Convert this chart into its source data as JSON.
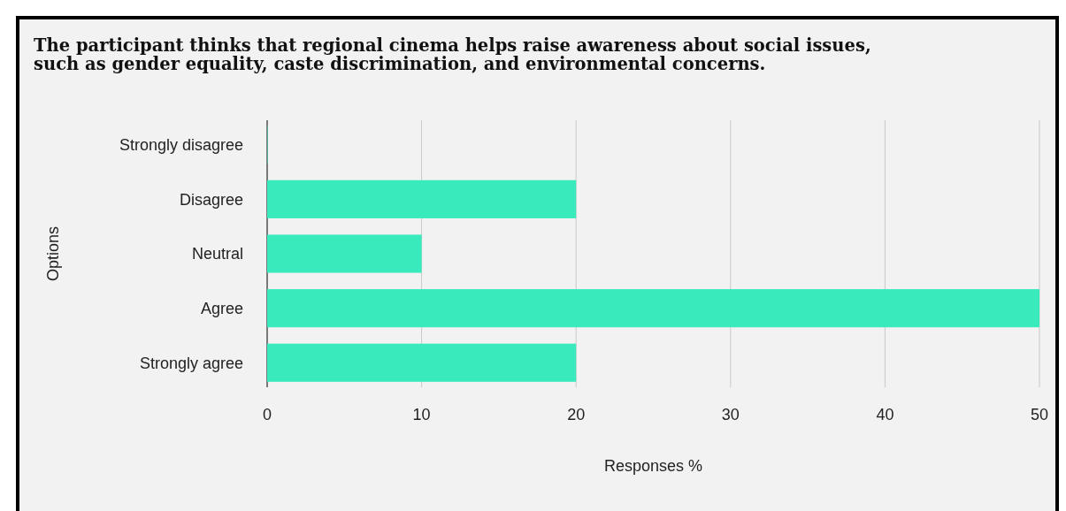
{
  "chart_data": {
    "type": "bar",
    "orientation": "horizontal",
    "title": "The participant thinks that regional cinema helps raise awareness about social issues, such as gender equality, caste discrimination, and environmental concerns.",
    "categories": [
      "Strongly disagree",
      "Disagree",
      "Neutral",
      "Agree",
      "Strongly agree"
    ],
    "values": [
      0,
      20,
      10,
      50,
      20
    ],
    "color": "#38eabc",
    "xlim": [
      0,
      50
    ],
    "xticks": [
      0,
      10,
      20,
      30,
      40,
      50
    ],
    "grid": "x",
    "xlabel": "Responses %",
    "ylabel": "Options"
  }
}
